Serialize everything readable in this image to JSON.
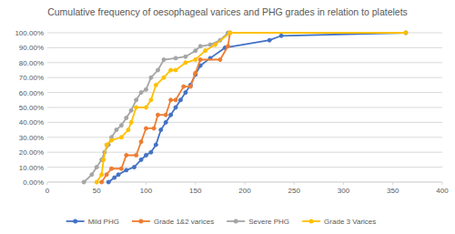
{
  "chart_data": {
    "type": "line",
    "title": "Cumulative frequency of oesophageal varices and PHG grades in relation to platelets",
    "xlim": [
      0,
      400
    ],
    "xticks": [
      0,
      50,
      100,
      150,
      200,
      250,
      300,
      350,
      400
    ],
    "ylim": [
      0,
      100
    ],
    "yticks": [
      {
        "value": 0,
        "label": "0.00%"
      },
      {
        "value": 10,
        "label": "10.00%"
      },
      {
        "value": 20,
        "label": "20.00%"
      },
      {
        "value": 30,
        "label": "30.00%"
      },
      {
        "value": 40,
        "label": "40.00%"
      },
      {
        "value": 50,
        "label": "50.00%"
      },
      {
        "value": 60,
        "label": "60.00%"
      },
      {
        "value": 70,
        "label": "70.00%"
      },
      {
        "value": 80,
        "label": "80.00%"
      },
      {
        "value": 90,
        "label": "90.00%"
      },
      {
        "value": 100,
        "label": "100.00%"
      }
    ],
    "grid": true,
    "legend": "bottom",
    "series": [
      {
        "name": "Mild PHG",
        "color": "#4472c4",
        "marker": "circle",
        "x": [
          62,
          68,
          72,
          80,
          88,
          95,
          100,
          105,
          110,
          115,
          120,
          125,
          130,
          135,
          140,
          145,
          150,
          155,
          165,
          180,
          225,
          237,
          363
        ],
        "values": [
          0,
          3,
          5,
          8,
          10,
          15,
          18,
          20,
          25,
          35,
          40,
          45,
          50,
          55,
          60,
          65,
          72,
          78,
          83,
          90,
          95,
          98,
          100
        ]
      },
      {
        "name": "Grade 1&2 varices",
        "color": "#ed7d31",
        "marker": "circle",
        "x": [
          55,
          60,
          65,
          75,
          80,
          90,
          95,
          100,
          108,
          112,
          120,
          125,
          130,
          138,
          145,
          150,
          155,
          175,
          183,
          185
        ],
        "values": [
          0,
          5,
          9,
          9,
          18,
          18,
          27,
          36,
          36,
          45,
          45,
          55,
          55,
          64,
          64,
          73,
          82,
          82,
          91,
          100
        ]
      },
      {
        "name": "Severe PHG",
        "color": "#a5a5a5",
        "marker": "circle",
        "x": [
          37,
          45,
          50,
          55,
          58,
          62,
          65,
          70,
          75,
          80,
          85,
          90,
          95,
          100,
          105,
          112,
          118,
          130,
          140,
          150,
          155,
          165,
          175,
          183
        ],
        "values": [
          0,
          5,
          10,
          15,
          20,
          25,
          30,
          35,
          38,
          43,
          48,
          55,
          60,
          62,
          70,
          75,
          82,
          83,
          84,
          88,
          91,
          92,
          95,
          100
        ]
      },
      {
        "name": "Grade 3 Varices",
        "color": "#ffc000",
        "marker": "circle",
        "x": [
          50,
          55,
          57,
          60,
          65,
          75,
          82,
          85,
          90,
          100,
          105,
          110,
          118,
          125,
          130,
          140,
          150,
          160,
          170,
          185,
          363
        ],
        "values": [
          0,
          5,
          15,
          25,
          28,
          30,
          35,
          40,
          50,
          50,
          55,
          65,
          70,
          75,
          75,
          80,
          82,
          88,
          92,
          100,
          100
        ]
      }
    ]
  }
}
